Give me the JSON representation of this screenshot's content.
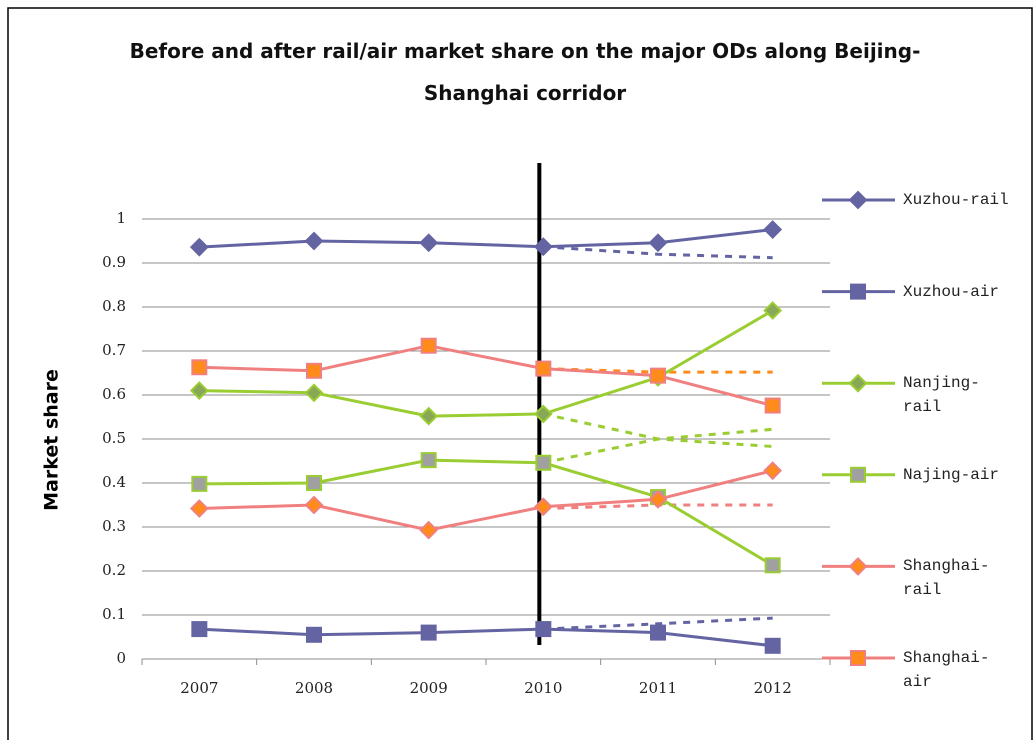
{
  "chart_data": {
    "type": "line",
    "title": "Before and after rail/air market share on the major ODs along Beijing-Shanghai corridor",
    "ylabel": "Market share",
    "categories": [
      "2007",
      "2008",
      "2009",
      "2010",
      "2011",
      "2012"
    ],
    "ylim": [
      0,
      1
    ],
    "yticks": [
      0,
      0.1,
      0.2,
      0.3,
      0.4,
      0.5,
      0.6,
      0.7,
      0.8,
      0.9,
      1
    ],
    "grid": true,
    "legend": "right",
    "series": [
      {
        "name": "Xuzhou-rail",
        "color": "#6464a2",
        "marker": "diamond",
        "marker_fill": "#6464a2",
        "values": [
          0.936,
          0.95,
          0.946,
          0.937,
          0.946,
          0.976
        ]
      },
      {
        "name": "Xuzhou-air",
        "color": "#6464a2",
        "marker": "square",
        "marker_fill": "#6464a2",
        "values": [
          0.068,
          0.055,
          0.06,
          0.068,
          0.06,
          0.03
        ]
      },
      {
        "name": "Nanjing-rail",
        "color": "#9acd32",
        "marker": "diamond",
        "marker_fill": "#88a858",
        "values": [
          0.61,
          0.605,
          0.552,
          0.557,
          0.64,
          0.792
        ]
      },
      {
        "name": "Najing-air",
        "color": "#9acd32",
        "marker": "square",
        "marker_fill": "#a0a0a0",
        "values": [
          0.398,
          0.4,
          0.452,
          0.446,
          0.368,
          0.213
        ]
      },
      {
        "name": "Shanghai-rail",
        "color": "#f08080",
        "marker": "diamond",
        "marker_fill": "#ff8c1a",
        "values": [
          0.342,
          0.35,
          0.293,
          0.346,
          0.363,
          0.428
        ]
      },
      {
        "name": "Shanghai-air",
        "color": "#f08080",
        "marker": "square",
        "marker_fill": "#ff8c1a",
        "values": [
          0.663,
          0.655,
          0.712,
          0.66,
          0.644,
          0.576
        ]
      }
    ],
    "projections": [
      {
        "color": "#6464a2",
        "values": [
          null,
          null,
          null,
          0.937,
          0.92,
          0.912
        ]
      },
      {
        "color": "#6464a2",
        "values": [
          null,
          null,
          null,
          0.068,
          0.08,
          0.093
        ]
      },
      {
        "color": "#9acd32",
        "values": [
          null,
          null,
          null,
          0.557,
          0.5,
          0.483
        ]
      },
      {
        "color": "#9acd32",
        "values": [
          null,
          null,
          null,
          0.446,
          0.5,
          0.522
        ]
      },
      {
        "color": "#f08080",
        "values": [
          null,
          null,
          null,
          0.342,
          0.35,
          0.35
        ]
      },
      {
        "color": "#ff8c1a",
        "values": [
          null,
          null,
          null,
          0.66,
          0.652,
          0.652
        ]
      }
    ]
  }
}
